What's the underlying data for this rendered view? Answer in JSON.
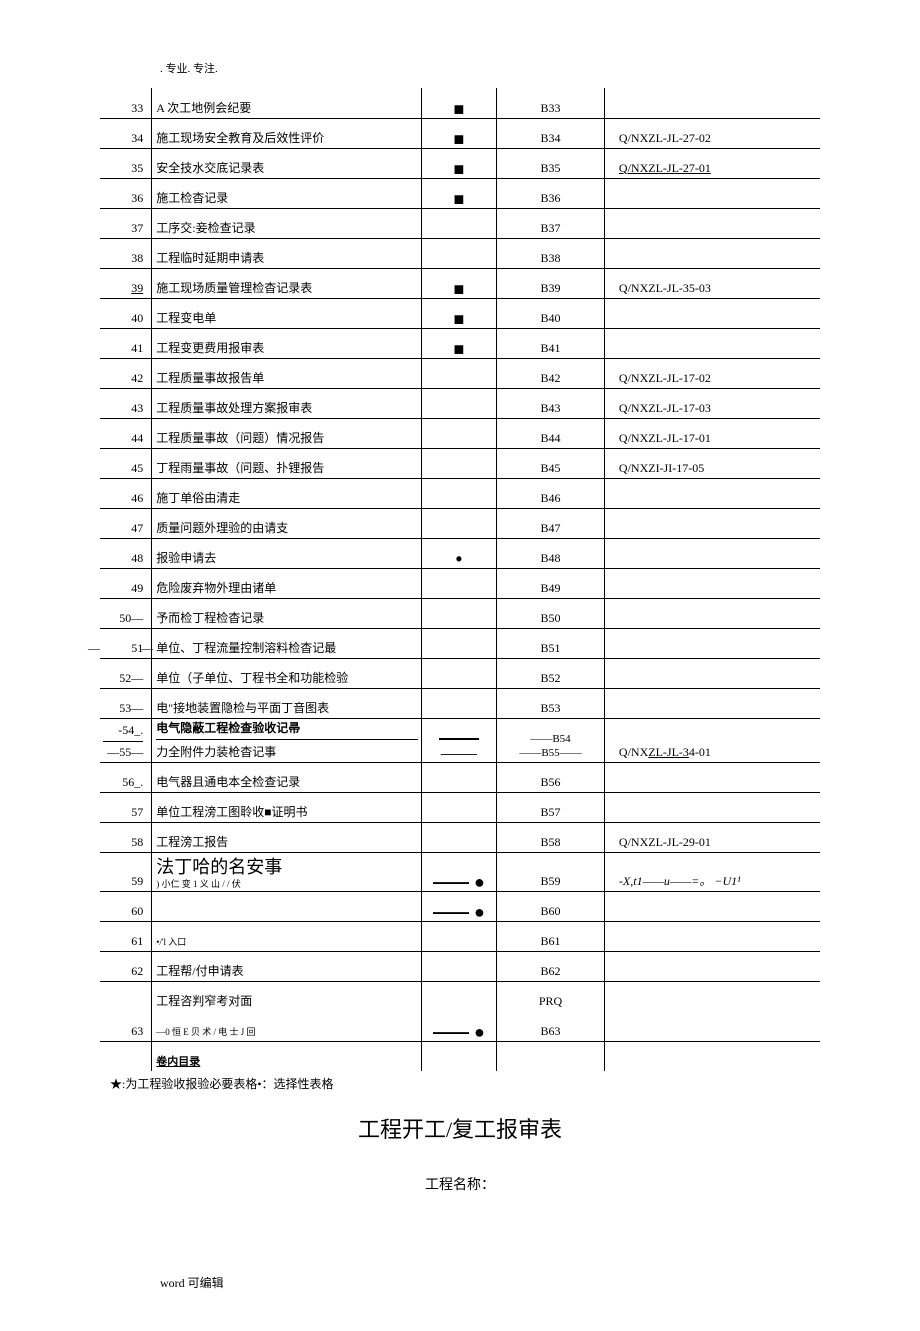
{
  "header": ". 专业. 专注.",
  "rows": [
    {
      "num": "33",
      "desc": "A 次工地例会纪要",
      "mark": "■",
      "code": "B33",
      "ref": ""
    },
    {
      "num": "34",
      "desc": "施工现场安全教育及后效性评价",
      "mark": "■",
      "code": "B34",
      "ref": "Q/NXZL-JL-27-02"
    },
    {
      "num": "35",
      "desc": "安全技水交底记录表",
      "mark": "■",
      "code": "B35",
      "ref": "Q/NXZL-JL-27-01",
      "refUnderline": true
    },
    {
      "num": "36",
      "desc": "施工检杳记录",
      "mark": "■",
      "code": "B36",
      "ref": ""
    },
    {
      "num": "37",
      "desc": "工序交:妾检查记录",
      "mark": "",
      "code": "B37",
      "ref": ""
    },
    {
      "num": "38",
      "desc": "工程临时延期申请表",
      "mark": "",
      "code": "B38",
      "ref": ""
    },
    {
      "num": "39",
      "numUnderline": true,
      "desc": "施工现场质量管理检杳记录表",
      "mark": "■",
      "code": "B39",
      "ref": "Q/NXZL-JL-35-03"
    },
    {
      "num": "40",
      "desc": "工程变电单",
      "mark": "■",
      "code": "B40",
      "ref": ""
    },
    {
      "num": "41",
      "desc": "工程变更费用报审表",
      "mark": "■",
      "code": "B41",
      "ref": ""
    },
    {
      "num": "42",
      "desc": "工程质量事故报告单",
      "mark": "",
      "code": "B42",
      "ref": "Q/NXZL-JL-17-02"
    },
    {
      "num": "43",
      "desc": "工程质量事故处理方案报审表",
      "mark": "",
      "code": "B43",
      "ref": "Q/NXZL-JL-17-03"
    },
    {
      "num": "44",
      "desc": "工程质量事故（问题）情况报告",
      "mark": "",
      "code": "B44",
      "ref": "Q/NXZL-JL-17-01"
    },
    {
      "num": "45",
      "desc": "丁程雨量事故（问题、扑锂报告",
      "mark": "",
      "code": "B45",
      "ref": "Q/NXZI-JI-17-05"
    },
    {
      "num": "46",
      "desc": "施丁单俗由清走",
      "mark": "",
      "code": "B46",
      "ref": ""
    },
    {
      "num": "47",
      "desc": "质量问题外理验的由请支",
      "mark": "",
      "code": "B47",
      "ref": ""
    },
    {
      "num": "48",
      "desc": "报验申请去",
      "mark": "•",
      "code": "B48",
      "ref": ""
    },
    {
      "num": "49",
      "desc": "危险废弃物外理由诸单",
      "mark": "",
      "code": "B49",
      "ref": ""
    },
    {
      "num": "50—",
      "desc": "予而检丁程检杳记录",
      "mark": "",
      "code": "B50",
      "ref": ""
    },
    {
      "num": "51",
      "dash": true,
      "desc": "单位、丁程流量控制溶料检杳记最",
      "mark": "",
      "code": "B51",
      "ref": ""
    },
    {
      "num": "52—",
      "desc": "单位（子单位、丁程书全和功能检验",
      "mark": "",
      "code": "B52",
      "ref": ""
    },
    {
      "num": "53—",
      "desc": "电\"接地装置隐检与平面丁音图表",
      "mark": "",
      "code": "B53",
      "ref": ""
    }
  ],
  "row5455": {
    "num1": "-54_.",
    "desc1": "电气隐蔽工程检查验收记帚",
    "code1": "——B54",
    "ref": "Q/NXZL-JL-34-01",
    "num2": "—55—",
    "desc2": "力全附件力装枪杳记事",
    "mark": "——",
    "code2": "——B55——"
  },
  "rows2": [
    {
      "num": "56_.",
      "desc": "电气器且通电本全检查记录",
      "mark": "",
      "code": "B56",
      "ref": ""
    },
    {
      "num": "57",
      "desc": "单位工程滂工图聆收■证明书",
      "mark": "",
      "code": "B57",
      "ref": ""
    },
    {
      "num": "58",
      "desc": "工程滂工报告",
      "mark": "",
      "code": "B58",
      "ref": "Q/NXZL-JL-29-01"
    },
    {
      "num": "59",
      "desc": "法丁哈的名安事",
      "sub": ") 小仁 变 1 义 山 / / 伏",
      "mark": "—— ●",
      "code": "B59",
      "ref": "-X,t1——u——=。 −U1¹",
      "bigDesc": true,
      "italicRef": true
    },
    {
      "num": "60",
      "desc": "",
      "mark": "—— ●",
      "code": "B60",
      "ref": ""
    },
    {
      "num": "61",
      "desc": "•/'l 入口",
      "mark": "",
      "code": "B61",
      "ref": "",
      "smallDesc": true
    },
    {
      "num": "62",
      "desc": "工程帮/付申请表",
      "mark": "",
      "code": "B62",
      "ref": ""
    }
  ],
  "row63top": {
    "desc": "工程咨判窄考对面",
    "code": "PRQ"
  },
  "row63": {
    "num": "63",
    "desc": "—0 恒 E 贝 术 / 电 士 J 回",
    "mark": "—— ●",
    "code": "B63",
    "ref": ""
  },
  "rowLast": {
    "desc": "卷内目录"
  },
  "footnote": "★:为工程验收报验必要表格•：选择性表格",
  "mainTitle": "工程开工/复工报审表",
  "subTitle": "工程名称：",
  "footer": "word 可编辑"
}
